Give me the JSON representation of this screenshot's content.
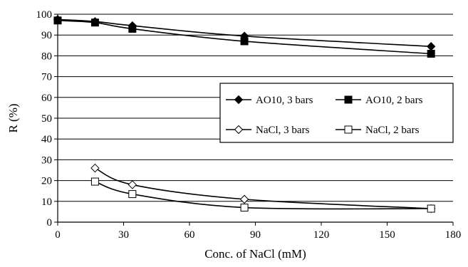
{
  "chart_data": {
    "type": "line",
    "title": "",
    "xlabel": "Conc. of  NaCl (mM)",
    "ylabel": "R (%)",
    "xlim": [
      0,
      180
    ],
    "ylim": [
      0,
      100
    ],
    "x_ticks": [
      "0",
      "30",
      "60",
      "90",
      "120",
      "150",
      "180"
    ],
    "y_ticks": [
      "0",
      "10",
      "20",
      "30",
      "40",
      "50",
      "60",
      "70",
      "80",
      "90",
      "100"
    ],
    "grid": "horizontal",
    "legend_position": "center-right",
    "series": [
      {
        "name": "AO10, 3 bars",
        "marker": "filled-diamond",
        "x": [
          0,
          17,
          34,
          85,
          170
        ],
        "y": [
          97.5,
          96.5,
          94.5,
          89.5,
          84.5
        ]
      },
      {
        "name": "AO10, 2 bars",
        "marker": "filled-square",
        "x": [
          0,
          17,
          34,
          85,
          170
        ],
        "y": [
          97,
          96,
          93,
          87,
          81
        ]
      },
      {
        "name": "NaCl, 3 bars",
        "marker": "open-diamond",
        "x": [
          17,
          34,
          85,
          170
        ],
        "y": [
          26,
          18,
          11,
          6.5
        ]
      },
      {
        "name": "NaCl, 2 bars",
        "marker": "open-square",
        "x": [
          17,
          34,
          85,
          170
        ],
        "y": [
          19.5,
          13.5,
          7,
          6.5
        ]
      }
    ]
  }
}
